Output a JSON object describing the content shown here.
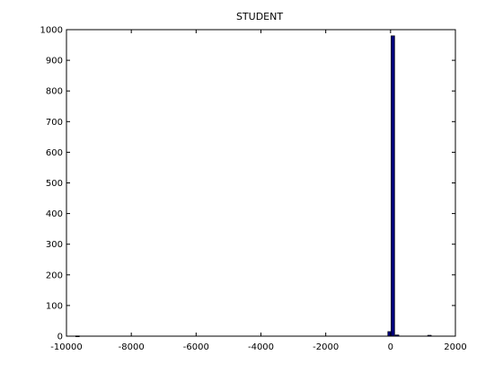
{
  "chart_data": {
    "type": "bar",
    "title": "STUDENT",
    "xlabel": "",
    "ylabel": "",
    "xlim": [
      -10000,
      2000
    ],
    "ylim": [
      0,
      1000
    ],
    "xticks": [
      -10000,
      -8000,
      -6000,
      -4000,
      -2000,
      0,
      2000
    ],
    "yticks": [
      0,
      100,
      200,
      300,
      400,
      500,
      600,
      700,
      800,
      900,
      1000
    ],
    "bin_width": 112,
    "bar_color": "#00007a",
    "bars": [
      {
        "x": -9660,
        "value": 1
      },
      {
        "x": -30,
        "value": 15
      },
      {
        "x": 70,
        "value": 980
      },
      {
        "x": 200,
        "value": 4
      },
      {
        "x": 1200,
        "value": 3
      }
    ],
    "grid": false
  }
}
